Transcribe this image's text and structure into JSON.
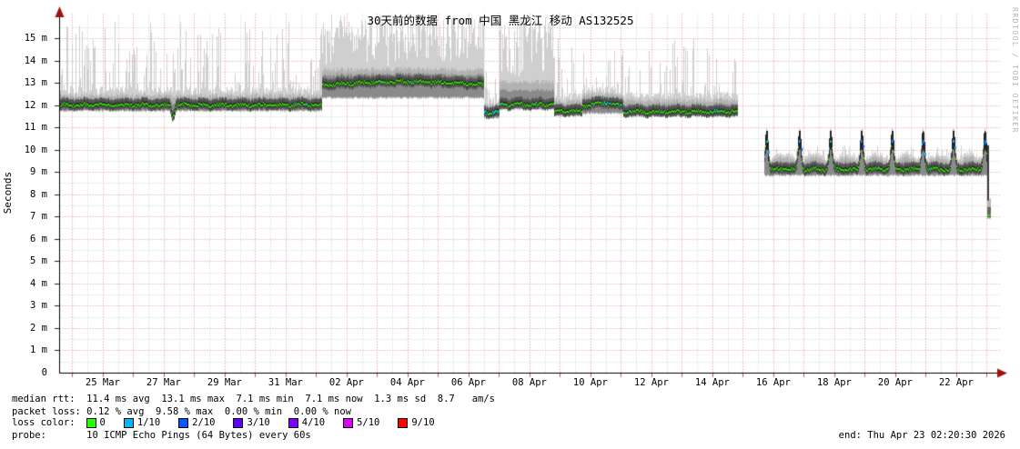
{
  "title": "30天前的数据 from 中国 黑龙江 移动 AS132525",
  "watermark": "RRDTOOL / TOBI OETIKER",
  "y_axis": {
    "label": "Seconds",
    "tick_labels": [
      "0",
      "1 m",
      "2 m",
      "3 m",
      "4 m",
      "5 m",
      "6 m",
      "7 m",
      "8 m",
      "9 m",
      "10 m",
      "11 m",
      "12 m",
      "13 m",
      "14 m",
      "15 m"
    ]
  },
  "x_axis": {
    "tick_labels": [
      "25 Mar",
      "27 Mar",
      "29 Mar",
      "31 Mar",
      "02 Apr",
      "04 Apr",
      "06 Apr",
      "08 Apr",
      "10 Apr",
      "12 Apr",
      "14 Apr",
      "16 Apr",
      "18 Apr",
      "20 Apr",
      "22 Apr"
    ]
  },
  "legend": {
    "median_rtt_row": "median rtt:  11.4 ms avg  13.1 ms max  7.1 ms min  7.1 ms now  1.3 ms sd  8.7   am/s",
    "packet_loss_row": "packet loss: 0.12 % avg  9.58 % max  0.00 % min  0.00 % now",
    "loss_color_label": "loss color:",
    "loss_colors": [
      {
        "label": "0",
        "color": "#26ff00"
      },
      {
        "label": "1/10",
        "color": "#00b8ff"
      },
      {
        "label": "2/10",
        "color": "#0059ff"
      },
      {
        "label": "3/10",
        "color": "#5e00ff"
      },
      {
        "label": "4/10",
        "color": "#7e00ff"
      },
      {
        "label": "5/10",
        "color": "#dd00ff"
      },
      {
        "label": "9/10",
        "color": "#ff0000"
      }
    ],
    "probe_row": "probe:       10 ICMP Echo Pings (64 Bytes) every 60s",
    "end_row": "end: Thu Apr 23 02:20:30 2026"
  },
  "chart_data": {
    "type": "smokeping-latency-graph",
    "title": "30天前的数据 from 中国 黑龙江 移动 AS132525",
    "ylabel": "Seconds",
    "y_unit": "ms",
    "ylim": [
      0,
      16.1
    ],
    "y_major_grid_step_ms": 1,
    "y_minor_grid_step_ms": 0.5,
    "x_tick_labels": [
      "25 Mar",
      "27 Mar",
      "29 Mar",
      "31 Mar",
      "02 Apr",
      "04 Apr",
      "06 Apr",
      "08 Apr",
      "10 Apr",
      "12 Apr",
      "14 Apr",
      "16 Apr",
      "18 Apr",
      "20 Apr",
      "22 Apr"
    ],
    "x_window": "30 days ending Thu Apr 23 02:20:30 2026",
    "x_first_tick_day": 1.43,
    "x_tick_spacing_days": 2,
    "days_visible": 30.85,
    "stats": {
      "median_rtt_ms": {
        "avg": 11.4,
        "max": 13.1,
        "min": 7.1,
        "now": 7.1,
        "sd": 1.3,
        "am_per_s": 8.7
      },
      "packet_loss_pct": {
        "avg": 0.12,
        "max": 9.58,
        "min": 0.0,
        "now": 0.0
      }
    },
    "probe": "10 ICMP Echo Pings (64 Bytes) every 60s",
    "colors": {
      "median_line": "#2bd600",
      "loss_1_10": "#00b8ff",
      "loss_2_10": "#0059ff",
      "grid_major": "#e58989",
      "grid_minor": "#c9c9c9",
      "axis": "#000000",
      "axis_arrow": "#a01010",
      "smoke_light": "#cfcfcf",
      "smoke_mid": "#b2b2b2",
      "smoke_dense": "#8a8a8a",
      "smoke_core": "#555555",
      "smoke_darkest": "#2f2f2f"
    },
    "segments": [
      {
        "name": "baseline-12ms",
        "start": 0,
        "end": 8.62,
        "median": 12.0,
        "smoke_low": 11.72,
        "dense_high": 12.55,
        "spike_top": 13.4,
        "spike_max": 15.8,
        "spike_rate": 0.5,
        "loss_rate": 0.015,
        "arc": 0,
        "dips": [
          {
            "day": 3.72,
            "depth": 0.5,
            "width": 0.05
          }
        ]
      },
      {
        "name": "elevated-13ms",
        "start": 8.62,
        "end": 13.92,
        "median": 12.9,
        "smoke_low": 12.3,
        "dense_high": 13.75,
        "spike_top": 15.2,
        "spike_max": 16.05,
        "spike_rate": 0.88,
        "loss_rate": 0.02,
        "arc": 0.15,
        "heavy": true
      },
      {
        "name": "dip-11.7ms",
        "start": 13.92,
        "end": 14.42,
        "median": 11.66,
        "smoke_low": 11.4,
        "dense_high": 12.1,
        "spike_top": 12.8,
        "spike_max": 14.0,
        "spike_rate": 0.3,
        "loss_rate": 0.3,
        "arc": 0
      },
      {
        "name": "burst-12ms",
        "start": 14.42,
        "end": 16.22,
        "median": 12.02,
        "smoke_low": 11.8,
        "dense_high": 13.3,
        "spike_top": 15.0,
        "spike_max": 15.95,
        "spike_rate": 0.82,
        "loss_rate": 0.05,
        "arc": 0,
        "heavy": true
      },
      {
        "name": "post-burst-11.7ms",
        "start": 16.22,
        "end": 17.15,
        "median": 11.72,
        "smoke_low": 11.5,
        "dense_high": 12.3,
        "spike_top": 13.2,
        "spike_max": 15.0,
        "spike_rate": 0.35,
        "loss_rate": 0.04,
        "arc": 0
      },
      {
        "name": "hill-12ms",
        "start": 17.15,
        "end": 18.48,
        "median": 11.95,
        "smoke_low": 11.6,
        "dense_high": 12.6,
        "spike_top": 13.4,
        "spike_max": 15.2,
        "spike_rate": 0.4,
        "loss_rate": 0.18,
        "arc": 0.12
      },
      {
        "name": "flat-11.7ms",
        "start": 18.48,
        "end": 22.25,
        "median": 11.7,
        "smoke_low": 11.48,
        "dense_high": 12.35,
        "spike_top": 13.1,
        "spike_max": 15.0,
        "spike_rate": 0.34,
        "loss_rate": 0.025,
        "arc": 0
      },
      {
        "name": "no-data-gap",
        "start": 22.25,
        "end": 23.12,
        "gap": true
      },
      {
        "name": "low-9ms-daily-spikes",
        "start": 23.12,
        "end": 30.42,
        "median": 9.08,
        "smoke_low": 8.82,
        "dense_high": 9.5,
        "spike_top": 9.9,
        "spike_max": 10.2,
        "spike_rate": 0.25,
        "loss_rate": 0.015,
        "arc": 0,
        "daily_spikes": [
          23.2,
          24.28,
          25.3,
          26.32,
          27.32,
          28.33,
          29.33,
          30.36
        ],
        "spike_peak": 10.35,
        "spike_smoke_top": 11.0
      },
      {
        "name": "final-drop-7ms",
        "start": 30.42,
        "end": 30.55,
        "drop": true,
        "median": 7.08,
        "drop_from": 10.2,
        "smoke_low": 6.9,
        "dense_high": 7.7
      }
    ]
  }
}
